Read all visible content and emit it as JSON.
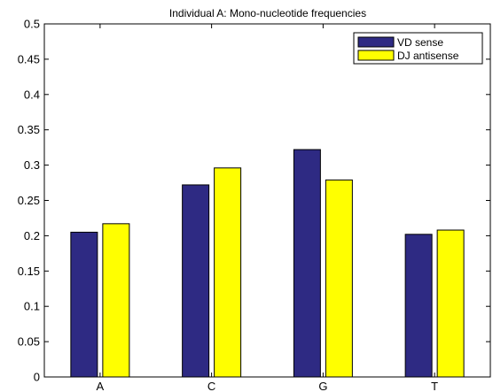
{
  "chart_data": {
    "type": "bar",
    "title": "Individual A: Mono-nucleotide frequencies",
    "xlabel": "",
    "ylabel": "",
    "categories": [
      "A",
      "C",
      "G",
      "T"
    ],
    "ylim": [
      0,
      0.5
    ],
    "yticks": [
      "0",
      "0.05",
      "0.1",
      "0.15",
      "0.2",
      "0.25",
      "0.3",
      "0.35",
      "0.4",
      "0.45",
      "0.5"
    ],
    "grid": false,
    "legend_position": "top-right",
    "series": [
      {
        "name": "VD sense",
        "color": "#2e2a83",
        "values": [
          0.205,
          0.272,
          0.322,
          0.202
        ]
      },
      {
        "name": "DJ antisense",
        "color": "#ffff00",
        "values": [
          0.217,
          0.296,
          0.279,
          0.208
        ]
      }
    ]
  }
}
